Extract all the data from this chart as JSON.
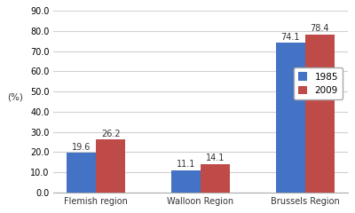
{
  "categories": [
    "Flemish region",
    "Walloon Region",
    "Brussels Region"
  ],
  "values_1985": [
    19.6,
    11.1,
    74.1
  ],
  "values_2009": [
    26.2,
    14.1,
    78.4
  ],
  "color_1985": "#4472C4",
  "color_2009": "#BE4B48",
  "ylabel": "(%)",
  "ylim": [
    0,
    90.0
  ],
  "yticks": [
    0.0,
    10.0,
    20.0,
    30.0,
    40.0,
    50.0,
    60.0,
    70.0,
    80.0,
    90.0
  ],
  "legend_labels": [
    "1985",
    "2009"
  ],
  "bar_width": 0.28,
  "label_fontsize": 7,
  "tick_fontsize": 7,
  "ylabel_fontsize": 7.5,
  "legend_fontsize": 7.5,
  "bg_color": "#FFFFFF",
  "grid_color": "#D0D0D0"
}
